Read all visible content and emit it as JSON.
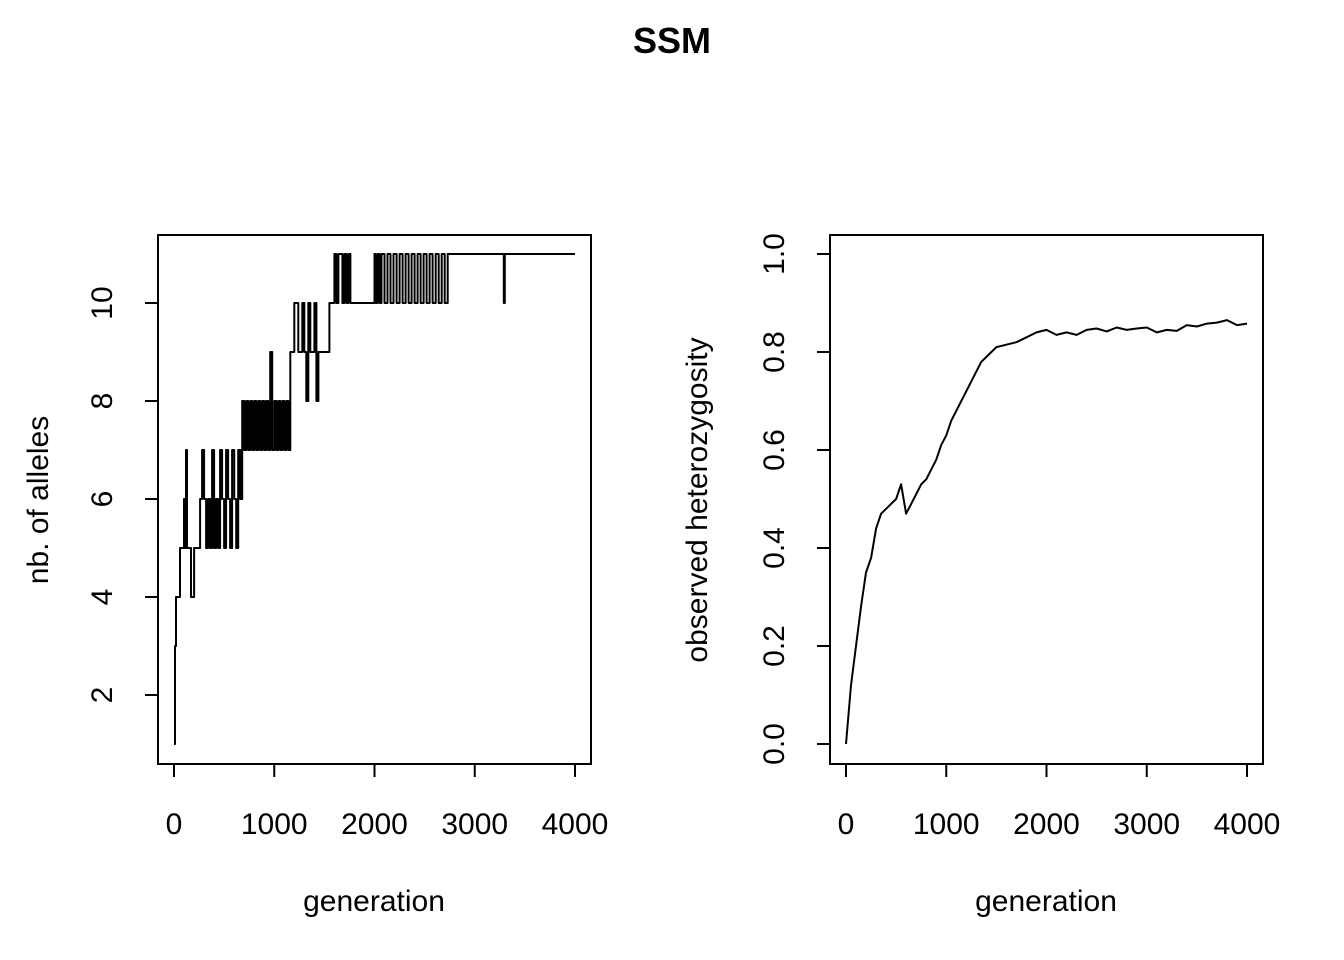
{
  "figure_title": "SSM",
  "chart_data": [
    {
      "type": "line",
      "title": "",
      "xlabel": "generation",
      "ylabel": "nb. of alleles",
      "xlim": [
        0,
        4000
      ],
      "ylim": [
        1,
        11
      ],
      "x_ticks": [
        "0",
        "1000",
        "2000",
        "3000",
        "4000"
      ],
      "y_ticks": [
        "2",
        "4",
        "6",
        "8",
        "10"
      ],
      "step": true,
      "series": [
        {
          "x": [
            0,
            10,
            20,
            40,
            60,
            80,
            100,
            110,
            120,
            130,
            150,
            170,
            200,
            260,
            280,
            300,
            320,
            340,
            360,
            380,
            400,
            420,
            440,
            460,
            480,
            500,
            520,
            540,
            560,
            580,
            600,
            620,
            640,
            660,
            680,
            700,
            720,
            740,
            760,
            780,
            800,
            820,
            840,
            860,
            880,
            900,
            920,
            940,
            960,
            980,
            1000,
            1020,
            1040,
            1060,
            1080,
            1100,
            1120,
            1140,
            1160,
            1180,
            1200,
            1240,
            1280,
            1300,
            1320,
            1340,
            1360,
            1380,
            1400,
            1420,
            1440,
            1480,
            1550,
            1600,
            1620,
            1640,
            1680,
            1700,
            1720,
            1740,
            1760,
            1780,
            2000,
            2010,
            2030,
            2050,
            2070,
            2100,
            2130,
            2160,
            2190,
            2220,
            2250,
            2280,
            2310,
            2340,
            2370,
            2400,
            2430,
            2460,
            2490,
            2520,
            2550,
            2580,
            2610,
            2640,
            2670,
            2700,
            2730,
            2750,
            3290,
            3300,
            3310,
            4000
          ],
          "y": [
            1,
            3,
            4,
            4,
            5,
            5,
            6,
            5,
            7,
            5,
            5,
            4,
            5,
            6,
            7,
            6,
            5,
            6,
            5,
            7,
            5,
            6,
            5,
            7,
            6,
            5,
            7,
            6,
            5,
            7,
            6,
            5,
            7,
            6,
            8,
            7,
            8,
            7,
            8,
            7,
            8,
            7,
            8,
            7,
            8,
            7,
            8,
            7,
            9,
            7,
            8,
            7,
            8,
            7,
            8,
            7,
            8,
            7,
            9,
            9,
            10,
            9,
            10,
            9,
            8,
            10,
            9,
            9,
            10,
            8,
            9,
            9,
            10,
            11,
            10,
            11,
            10,
            11,
            10,
            11,
            10,
            10,
            11,
            10,
            11,
            10,
            11,
            10,
            11,
            10,
            11,
            10,
            11,
            10,
            11,
            10,
            11,
            10,
            11,
            10,
            11,
            10,
            11,
            10,
            11,
            10,
            11,
            10,
            11,
            11,
            10,
            11,
            11,
            11
          ]
        }
      ]
    },
    {
      "type": "line",
      "title": "",
      "xlabel": "generation",
      "ylabel": "observed heterozygosity",
      "xlim": [
        0,
        4000
      ],
      "ylim": [
        0.0,
        1.0
      ],
      "x_ticks": [
        "0",
        "1000",
        "2000",
        "3000",
        "4000"
      ],
      "y_ticks": [
        "0.0",
        "0.2",
        "0.4",
        "0.6",
        "0.8",
        "1.0"
      ],
      "series": [
        {
          "x": [
            0,
            50,
            100,
            150,
            200,
            250,
            300,
            350,
            400,
            450,
            500,
            550,
            600,
            650,
            700,
            750,
            800,
            850,
            900,
            950,
            1000,
            1050,
            1100,
            1150,
            1200,
            1250,
            1300,
            1350,
            1400,
            1450,
            1500,
            1600,
            1700,
            1800,
            1900,
            2000,
            2100,
            2200,
            2300,
            2400,
            2500,
            2600,
            2700,
            2800,
            2900,
            3000,
            3100,
            3200,
            3300,
            3400,
            3500,
            3600,
            3700,
            3800,
            3900,
            4000
          ],
          "y": [
            0.0,
            0.12,
            0.2,
            0.28,
            0.35,
            0.38,
            0.44,
            0.47,
            0.48,
            0.49,
            0.5,
            0.53,
            0.47,
            0.49,
            0.51,
            0.53,
            0.54,
            0.56,
            0.58,
            0.61,
            0.63,
            0.66,
            0.68,
            0.7,
            0.72,
            0.74,
            0.76,
            0.78,
            0.79,
            0.8,
            0.81,
            0.815,
            0.82,
            0.83,
            0.84,
            0.845,
            0.835,
            0.84,
            0.835,
            0.845,
            0.848,
            0.842,
            0.85,
            0.845,
            0.848,
            0.85,
            0.84,
            0.845,
            0.843,
            0.855,
            0.852,
            0.858,
            0.86,
            0.865,
            0.855,
            0.858
          ]
        }
      ]
    }
  ]
}
